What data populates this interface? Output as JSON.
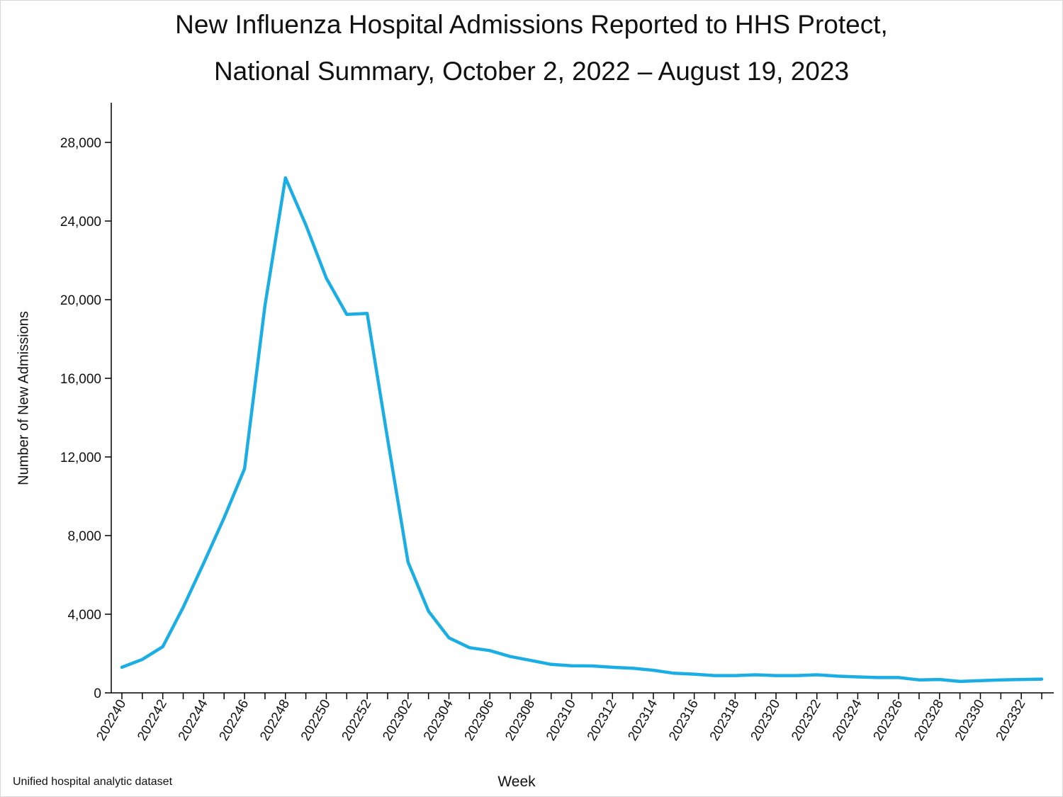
{
  "title_line1": "New Influenza Hospital Admissions Reported to HHS Protect,",
  "title_line2": "National Summary, October 2, 2022 – August 19, 2023",
  "source_note": "Unified hospital analytic dataset",
  "colors": {
    "line": "#1aaee5",
    "axis": "#000000"
  },
  "chart_data": {
    "type": "line",
    "xlabel": "Week",
    "ylabel": "Number of New Admissions",
    "ylim": [
      0,
      30000
    ],
    "yticks": [
      0,
      4000,
      8000,
      12000,
      16000,
      20000,
      24000,
      28000
    ],
    "ytick_labels": [
      "0",
      "4,000",
      "8,000",
      "12,000",
      "16,000",
      "20,000",
      "24,000",
      "28,000"
    ],
    "grid": false,
    "legend": "none",
    "x_tick_labels": [
      "202240",
      "202242",
      "202244",
      "202246",
      "202248",
      "202250",
      "202252",
      "202302",
      "202304",
      "202306",
      "202308",
      "202310",
      "202312",
      "202314",
      "202316",
      "202318",
      "202320",
      "202322",
      "202324",
      "202326",
      "202328",
      "202330",
      "202332"
    ],
    "x": [
      "202240",
      "202241",
      "202242",
      "202243",
      "202244",
      "202245",
      "202246",
      "202247",
      "202248",
      "202249",
      "202250",
      "202251",
      "202252",
      "202301",
      "202302",
      "202303",
      "202304",
      "202305",
      "202306",
      "202307",
      "202308",
      "202309",
      "202310",
      "202311",
      "202312",
      "202313",
      "202314",
      "202315",
      "202316",
      "202317",
      "202318",
      "202319",
      "202320",
      "202321",
      "202322",
      "202323",
      "202324",
      "202325",
      "202326",
      "202327",
      "202328",
      "202329",
      "202330",
      "202331",
      "202332",
      "202333"
    ],
    "series": [
      {
        "values": [
          1300,
          1700,
          2350,
          4350,
          6600,
          8900,
          11400,
          19700,
          26200,
          23800,
          21100,
          19250,
          19300,
          12900,
          6650,
          4150,
          2800,
          2300,
          2150,
          1850,
          1650,
          1450,
          1380,
          1370,
          1300,
          1250,
          1150,
          1000,
          950,
          880,
          880,
          920,
          880,
          880,
          920,
          850,
          810,
          780,
          780,
          660,
          680,
          580,
          620,
          660,
          680,
          700
        ]
      }
    ]
  }
}
